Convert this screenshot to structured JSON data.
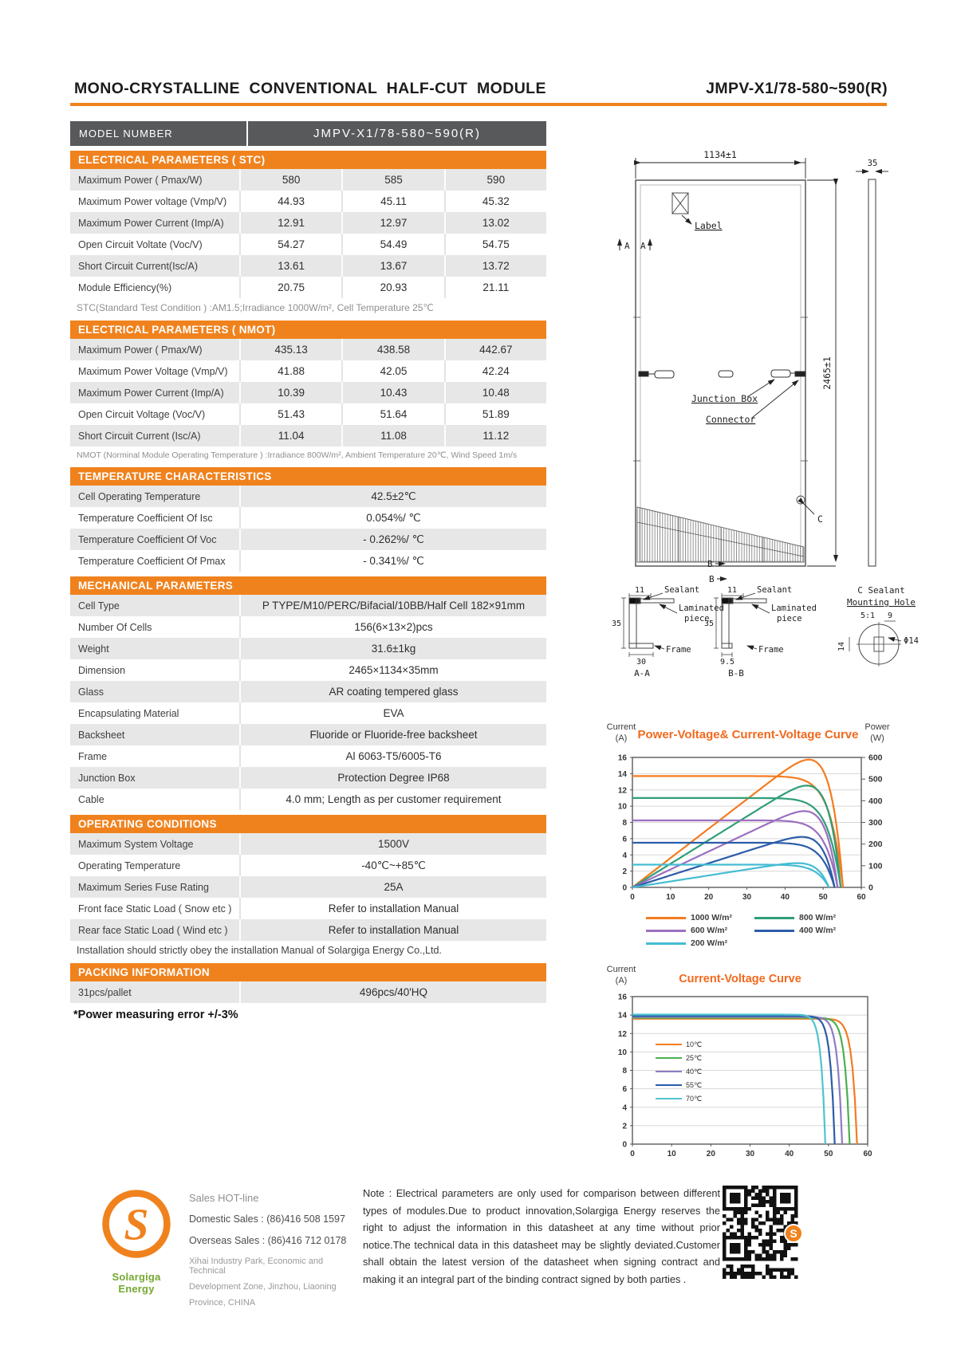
{
  "header": {
    "title_left": "MONO-CRYSTALLINE  CONVENTIONAL  HALF-CUT  MODULE",
    "title_right": "JMPV-X1/78-580~590(R)",
    "accent_color": "#F0821E"
  },
  "model_bar": {
    "label": "MODEL   NUMBER",
    "value": "JMPV-X1/78-580~590(R)"
  },
  "tables": {
    "stc": {
      "header": "ELECTRICAL PARAMETERS ( STC)",
      "rows": [
        [
          "Maximum Power ( Pmax/W)",
          "580",
          "585",
          "590"
        ],
        [
          "Maximum Power voltage (Vmp/V)",
          "44.93",
          "45.11",
          "45.32"
        ],
        [
          "Maximum Power Current (Imp/A)",
          "12.91",
          "12.97",
          "13.02"
        ],
        [
          "Open Circuit Voltate (Voc/V)",
          "54.27",
          "54.49",
          "54.75"
        ],
        [
          "Short Circuit Current(Isc/A)",
          "13.61",
          "13.67",
          "13.72"
        ],
        [
          "Module Efficiency(%)",
          "20.75",
          "20.93",
          "21.11"
        ]
      ],
      "note": "STC(Standard Test Condition  ) :AM1.5;Irradiance 1000W/m²,  Cell Temperature 25℃"
    },
    "nmot": {
      "header": "ELECTRICAL PARAMETERS ( NMOT)",
      "rows": [
        [
          "Maximum Power ( Pmax/W)",
          "435.13",
          "438.58",
          "442.67"
        ],
        [
          "Maximum Power Voltage (Vmp/V)",
          "41.88",
          "42.05",
          "42.24"
        ],
        [
          "Maximum Power Current (Imp/A)",
          "10.39",
          "10.43",
          "10.48"
        ],
        [
          "Open Circuit Voltage (Voc/V)",
          "51.43",
          "51.64",
          "51.89"
        ],
        [
          "Short Circuit Current (Isc/A)",
          "11.04",
          "11.08",
          "11.12"
        ]
      ],
      "note": "NMOT  (Norminal Module Operating Temperature ) :Irradiance 800W/m²,  Ambient Temperature  20℃,  Wind Speed 1m/s"
    },
    "temp": {
      "header": "TEMPERATURE CHARACTERISTICS",
      "rows": [
        [
          "Cell Operating Temperature",
          "42.5±2℃"
        ],
        [
          "Temperature Coefficient Of Isc",
          "0.054%/ ℃"
        ],
        [
          "Temperature Coefficient Of Voc",
          "- 0.262%/ ℃"
        ],
        [
          "Temperature Coefficient Of Pmax",
          "- 0.341%/ ℃"
        ]
      ]
    },
    "mech": {
      "header": "MECHANICAL PARAMETERS",
      "rows": [
        [
          "Cell Type",
          "P TYPE/M10/PERC/Bifacial/10BB/Half Cell 182×91mm"
        ],
        [
          "Number Of Cells",
          "156(6×13×2)pcs"
        ],
        [
          "Weight",
          "31.6±1kg"
        ],
        [
          "Dimension",
          "2465×1134×35mm"
        ],
        [
          "Glass",
          "AR coating tempered glass"
        ],
        [
          "Encapsulating Material",
          "EVA"
        ],
        [
          "Backsheet",
          "Fluoride or Fluoride-free backsheet"
        ],
        [
          "Frame",
          "Al 6063-T5/6005-T6"
        ],
        [
          "Junction Box",
          "Protection Degree IP68"
        ],
        [
          "Cable",
          "4.0 mm;  Length as per customer requirement"
        ]
      ]
    },
    "oper": {
      "header": "OPERATING CONDITIONS",
      "rows": [
        [
          "Maximum System Voltage",
          "1500V"
        ],
        [
          "Operating Temperature",
          "-40℃~+85℃"
        ],
        [
          "Maximum Series Fuse Rating",
          "25A"
        ],
        [
          "Front face Static Load ( Snow etc )",
          "Refer to installation  Manual"
        ],
        [
          "Rear face Static Load ( Wind etc )",
          "Refer to installation  Manual"
        ]
      ],
      "note": "Installation should strictly obey the installation Manual of Solargiga  Energy Co.,Ltd."
    },
    "pack": {
      "header": "PACKING INFORMATION",
      "rows": [
        [
          "31pcs/pallet",
          "496pcs/40'HQ"
        ]
      ],
      "note": "*Power measuring error  +/-3%"
    }
  },
  "drawing": {
    "dim_width": "1134±1",
    "dim_height": "2465±1",
    "dim_thickness": "35",
    "label": "Label",
    "junction_box": "Junction Box",
    "connector": "Connector",
    "a": "A",
    "b": "B",
    "c": "C",
    "section_aa": "A-A",
    "section_bb": "B-B",
    "dim11": "11",
    "dim35": "35",
    "dim30": "30",
    "dim95": "9.5",
    "sealant": "Sealant",
    "laminated": "Laminated",
    "piece": "piece",
    "frame": "Frame",
    "c_sealant": "C Sealant",
    "mounting_hole": "Mounting Hole",
    "scale": "5:1",
    "dim9": "9",
    "dim14": "14",
    "phi14": "Φ14"
  },
  "chart_data": [
    {
      "type": "line",
      "title": "Power-Voltage& Current-Voltage Curve",
      "left_axis_title": [
        "Current",
        "(A)"
      ],
      "right_axis_title": [
        "Power",
        "(W)"
      ],
      "x_range": [
        0,
        60
      ],
      "x_ticks": [
        0,
        10,
        20,
        30,
        40,
        50,
        60
      ],
      "left_range": [
        0,
        16
      ],
      "left_ticks": [
        0,
        2,
        4,
        6,
        8,
        10,
        12,
        14,
        16
      ],
      "right_range": [
        0,
        600
      ],
      "right_ticks": [
        0,
        100,
        200,
        300,
        400,
        500,
        600
      ],
      "knee": 16,
      "grid": true,
      "legend_position": "below",
      "series": [
        {
          "name": "1000 W/m²",
          "color": "#F47B20",
          "isc": 13.7,
          "voc": 55.2,
          "pmax": 590
        },
        {
          "name": "800 W/m²",
          "color": "#2F9E78",
          "isc": 11.0,
          "voc": 54.6,
          "pmax": 470
        },
        {
          "name": "600 W/m²",
          "color": "#9B6FC0",
          "isc": 8.25,
          "voc": 53.8,
          "pmax": 352
        },
        {
          "name": "400 W/m²",
          "color": "#2B5CA8",
          "isc": 5.5,
          "voc": 53.0,
          "pmax": 233
        },
        {
          "name": "200 W/m²",
          "color": "#45BCD2",
          "isc": 2.8,
          "voc": 51.5,
          "pmax": 112
        }
      ]
    },
    {
      "type": "line",
      "title": "Current-Voltage Curve",
      "left_axis_title": [
        "Current",
        "(A)"
      ],
      "x_range": [
        0,
        60
      ],
      "x_ticks": [
        0,
        10,
        20,
        30,
        40,
        50,
        60
      ],
      "left_range": [
        0,
        16
      ],
      "left_ticks": [
        0,
        2,
        4,
        6,
        8,
        10,
        12,
        14,
        16
      ],
      "knee": 45,
      "grid": true,
      "legend_position": "inside-left",
      "series": [
        {
          "name": "10℃",
          "color": "#F47B20",
          "isc": 13.6,
          "voc": 57.3
        },
        {
          "name": "25℃",
          "color": "#4CAF50",
          "isc": 13.7,
          "voc": 55.4
        },
        {
          "name": "40℃",
          "color": "#8E7CC3",
          "isc": 13.8,
          "voc": 53.5
        },
        {
          "name": "55℃",
          "color": "#2B5CA8",
          "isc": 13.9,
          "voc": 51.6
        },
        {
          "name": "70℃",
          "color": "#4FC3D0",
          "isc": 14.05,
          "voc": 49.2
        }
      ]
    }
  ],
  "footer": {
    "logo_text": "Solargiga Energy",
    "logo_letter": "S",
    "sales_hotline": "Sales HOT-line",
    "domestic": "Domestic Sales : (86)416 508 1597",
    "overseas": "Overseas Sales : (86)416 712 0178",
    "address1": "Xihai Industry Park, Economic and Technical",
    "address2": "Development  Zone, Jinzhou, Liaoning",
    "address3": "Province, CHINA",
    "note": "Note :  Electrical  parameters  are  only  used  for  comparison  between different  types  of  modules.Due  to  product  innovation,Solargiga  Energy reserves  the  right  to  adjust  the  information  in  this  datasheet  at  any  time without  prior  notice.The  technical  data  in  this  datasheet  may  be  slightly deviated.Customer  shall  obtain  the  latest  version  of  the  datasheet  when signing  contract  and  making  it  an  integral  part  of  the  binding  contract signed by both parties ."
  }
}
